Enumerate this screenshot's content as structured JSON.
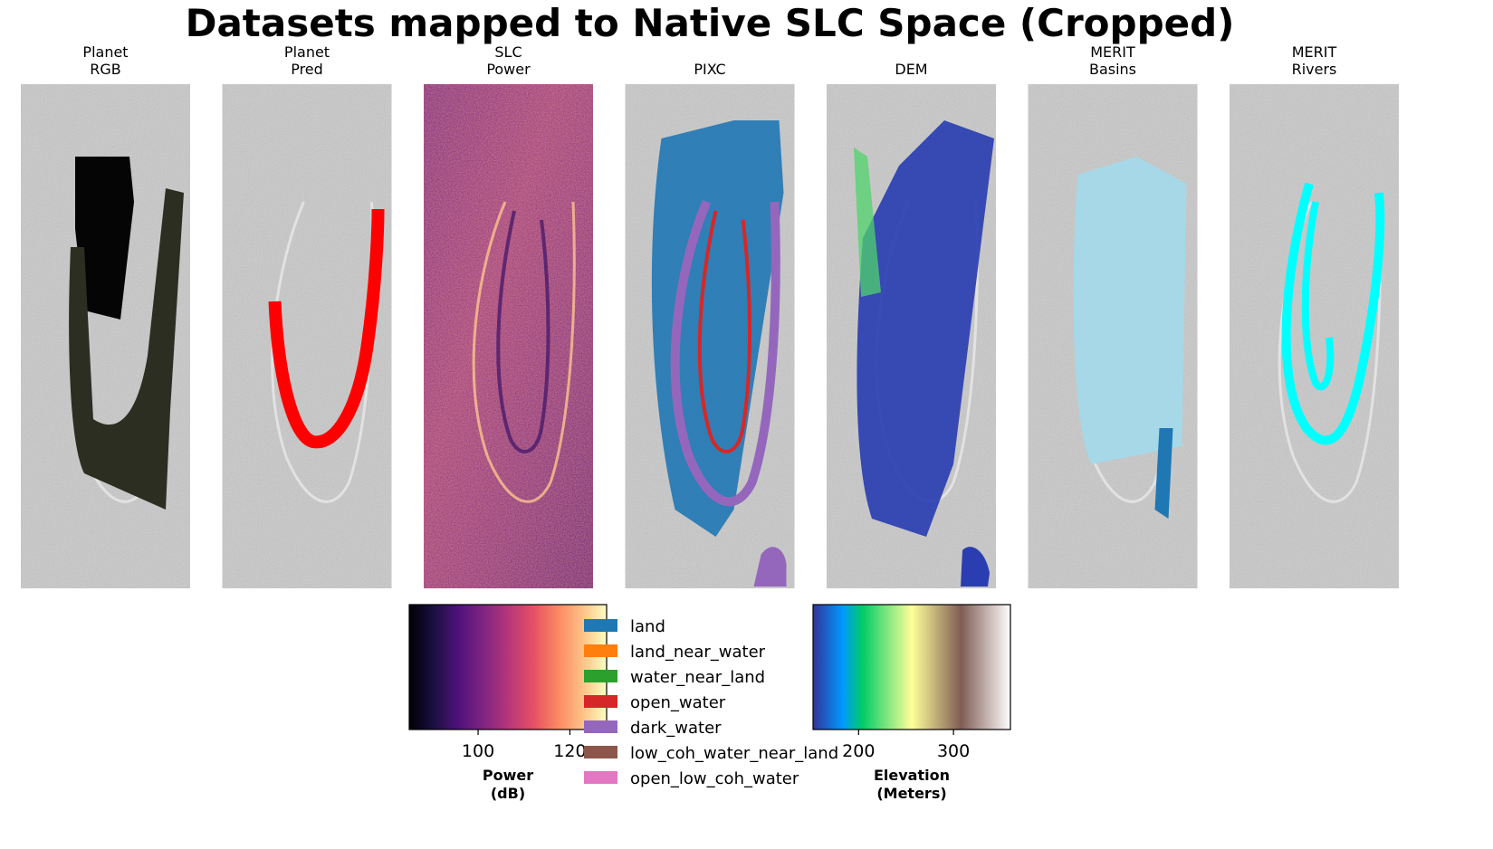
{
  "title": "Datasets mapped to Native SLC Space (Cropped)",
  "panels": [
    {
      "line1": "Planet",
      "line2": "RGB"
    },
    {
      "line1": "Planet",
      "line2": "Pred"
    },
    {
      "line1": "SLC",
      "line2": "Power"
    },
    {
      "line1": "",
      "line2": "PIXC"
    },
    {
      "line1": "",
      "line2": "DEM"
    },
    {
      "line1": "MERIT",
      "line2": "Basins"
    },
    {
      "line1": "MERIT",
      "line2": "Rivers"
    }
  ],
  "chart_data": {
    "type": "heatmap",
    "colorbars": [
      {
        "name": "power",
        "label_line1": "Power",
        "label_line2": "(dB)",
        "range": [
          85,
          128
        ],
        "ticks": [
          100,
          120
        ],
        "tick_labels": [
          "100",
          "120"
        ],
        "colormap": "magma"
      },
      {
        "name": "elevation",
        "label_line1": "Elevation",
        "label_line2": "(Meters)",
        "range": [
          152,
          360
        ],
        "ticks": [
          200,
          300
        ],
        "tick_labels": [
          "200",
          "300"
        ],
        "colormap": "terrain"
      }
    ],
    "pixc_legend": [
      {
        "label": "land",
        "color": "#1f77b4"
      },
      {
        "label": "land_near_water",
        "color": "#ff7f0e"
      },
      {
        "label": "water_near_land",
        "color": "#2ca02c"
      },
      {
        "label": "open_water",
        "color": "#d62728"
      },
      {
        "label": "dark_water",
        "color": "#9467bd"
      },
      {
        "label": "low_coh_water_near_land",
        "color": "#8c564b"
      },
      {
        "label": "open_low_coh_water",
        "color": "#e377c2"
      }
    ],
    "overlay_colors": {
      "planet_pred": "#ff0000",
      "merit_basins_main": "#a6d8e8",
      "merit_basins_secondary": "#1f77b4",
      "merit_rivers": "#00ffff",
      "dem_low": "#2a3eb1"
    }
  }
}
